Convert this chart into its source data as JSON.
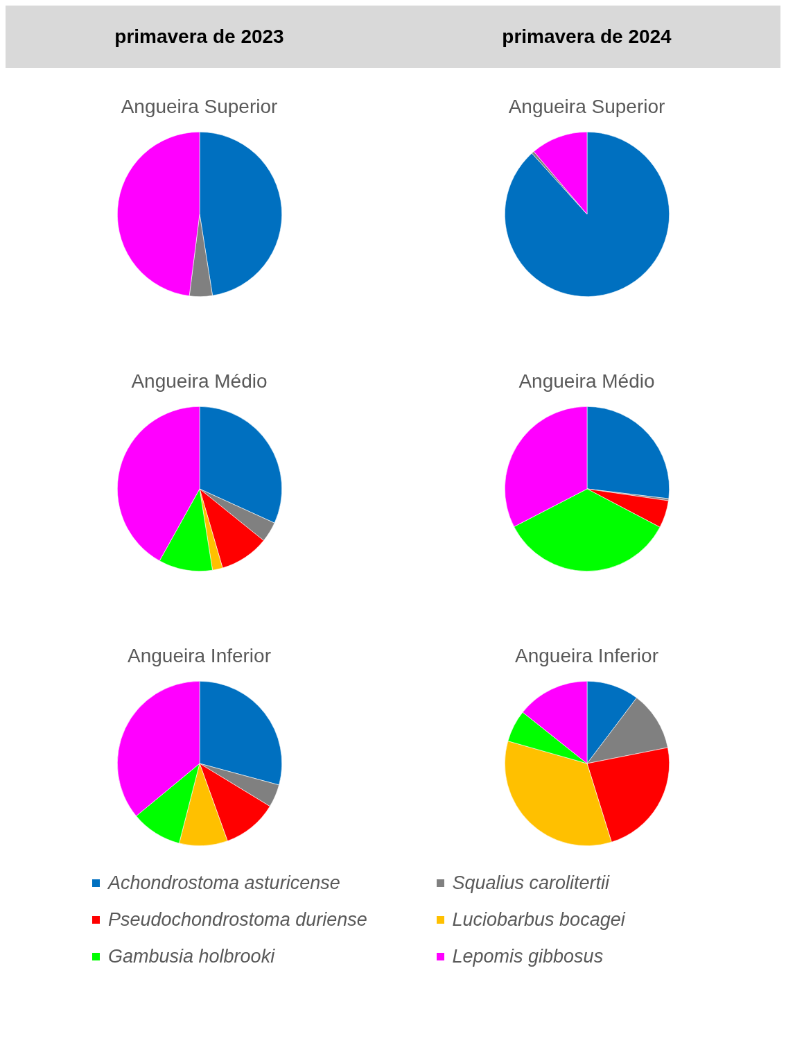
{
  "chart_data": [
    {
      "type": "pie",
      "title": "primavera de 2023",
      "subtitle": "Angueira Superior",
      "categories": [
        "Achondrostoma asturicense",
        "Squalius carolitertii",
        "Pseudochondrostoma duriense",
        "Luciobarbus bocagei",
        "Gambusia holbrooki",
        "Lepomis gibbosus"
      ],
      "values": [
        47.5,
        4.5,
        0,
        0,
        0,
        48
      ],
      "colors": [
        "#0070c0",
        "#808080",
        "#ff0000",
        "#ffc000",
        "#00ff00",
        "#ff00ff"
      ],
      "legend": "bottom"
    },
    {
      "type": "pie",
      "title": "primavera de 2024",
      "subtitle": "Angueira Superior",
      "categories": [
        null,
        null,
        null,
        null,
        null,
        null
      ],
      "values": [
        88.3,
        0.5,
        0,
        0,
        0,
        11.2
      ],
      "colors": [
        "#0070c0",
        "#808080",
        "#ff0000",
        "#ffc000",
        "#00ff00",
        "#ff00ff"
      ]
    },
    {
      "type": "pie",
      "title": "Angueira Médio",
      "categories": [
        null,
        null,
        null,
        null,
        null,
        null
      ],
      "values": [
        31.8,
        4,
        9.7,
        2,
        10.6,
        41.9
      ],
      "colors": [
        "#0070c0",
        "#808080",
        "#ff0000",
        "#ffc000",
        "#00ff00",
        "#ff00ff"
      ]
    },
    {
      "type": "pie",
      "title": "Angueira Médio",
      "categories": [
        null,
        null,
        null,
        null,
        null,
        null
      ],
      "values": [
        26.9,
        0.4,
        5.4,
        0,
        34.7,
        32.6
      ],
      "colors": [
        "#0070c0",
        "#808080",
        "#ff0000",
        "#ffc000",
        "#00ff00",
        "#ff00ff"
      ]
    },
    {
      "type": "pie",
      "title": "Angueira Inferior",
      "categories": [
        null,
        null,
        null,
        null,
        null,
        null
      ],
      "values": [
        29.2,
        4.5,
        10.8,
        9.5,
        10,
        36
      ],
      "colors": [
        "#0070c0",
        "#808080",
        "#ff0000",
        "#ffc000",
        "#00ff00",
        "#ff00ff"
      ]
    },
    {
      "type": "pie",
      "title": "Angueira Inferior",
      "categories": [
        null,
        null,
        null,
        null,
        null,
        null
      ],
      "values": [
        10.3,
        11.6,
        23.3,
        34.2,
        6.3,
        14.3
      ],
      "colors": [
        "#0070c0",
        "#808080",
        "#ff0000",
        "#ffc000",
        "#00ff00",
        "#ff00ff"
      ]
    }
  ]
}
